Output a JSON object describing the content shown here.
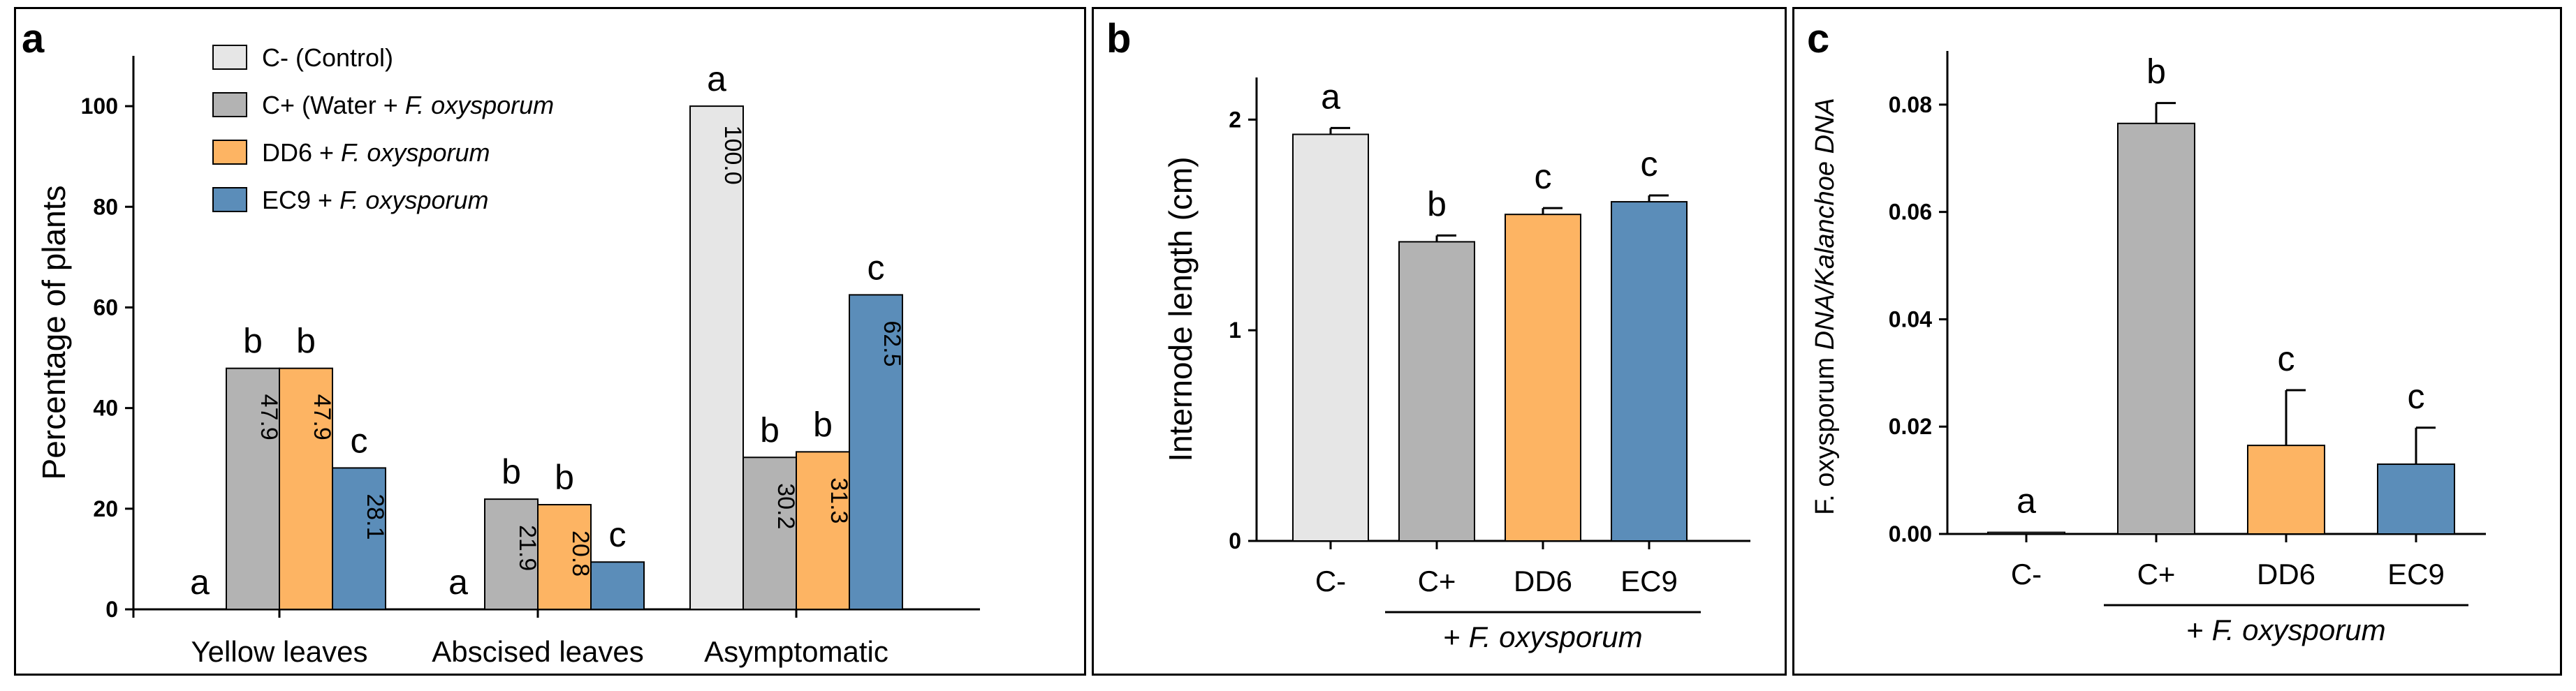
{
  "colors": {
    "control": "#e6e6e6",
    "water": "#b3b3b3",
    "dd6": "#fdb463",
    "ec9": "#5b8db9",
    "axis": "#000000"
  },
  "chart_data": [
    {
      "type": "bar",
      "panel_label": "a",
      "categories": [
        "Yellow leaves",
        "Abscised leaves",
        "Asymptomatic"
      ],
      "series": [
        {
          "name": "C- (Control)",
          "values": [
            0,
            0,
            100.0
          ],
          "value_labels": [
            "",
            "",
            "100.0"
          ],
          "letters": [
            "a",
            "a",
            "a"
          ],
          "color_key": "control"
        },
        {
          "name_parts": [
            "C+ (Water + ",
            "F. oxysporum",
            ""
          ],
          "name": "C+ (Water + F. oxysporum",
          "values": [
            47.9,
            21.9,
            30.2
          ],
          "value_labels": [
            "47.9",
            "21.9",
            "30.2"
          ],
          "letters": [
            "b",
            "b",
            "b"
          ],
          "color_key": "water"
        },
        {
          "name_parts": [
            "DD6 + ",
            "F. oxysporum",
            ""
          ],
          "name": "DD6 + F. oxysporum",
          "values": [
            47.9,
            20.8,
            31.3
          ],
          "value_labels": [
            "47.9",
            "20.8",
            "31.3"
          ],
          "letters": [
            "b",
            "b",
            "b"
          ],
          "color_key": "dd6"
        },
        {
          "name_parts": [
            "EC9 + ",
            "F. oxysporum",
            ""
          ],
          "name": "EC9 + F. oxysporum",
          "values": [
            28.1,
            9.4,
            62.5
          ],
          "value_labels": [
            "28.1",
            "",
            "62.5"
          ],
          "letters": [
            "c",
            "c",
            "c"
          ],
          "color_key": "ec9"
        }
      ],
      "ylabel": "Percentage of plants",
      "ylim": [
        0,
        110
      ],
      "yticks": [
        0,
        20,
        40,
        60,
        80,
        100
      ],
      "legend_position": "top-left",
      "grid": false
    },
    {
      "type": "bar",
      "panel_label": "b",
      "categories": [
        "C-",
        "C+",
        "DD6",
        "EC9"
      ],
      "values": [
        1.93,
        1.42,
        1.55,
        1.61
      ],
      "errors": [
        0.03,
        0.03,
        0.03,
        0.03
      ],
      "letters": [
        "a",
        "b",
        "c",
        "c"
      ],
      "color_keys": [
        "control",
        "water",
        "dd6",
        "ec9"
      ],
      "ylabel": "Internode length (cm)",
      "ylim": [
        0,
        2.2
      ],
      "yticks": [
        0,
        1,
        2
      ],
      "group_label_parts": [
        "+ ",
        "F. oxysporum"
      ],
      "grid": false
    },
    {
      "type": "bar",
      "panel_label": "c",
      "categories": [
        "C-",
        "C+",
        "DD6",
        "EC9"
      ],
      "values": [
        0.0003,
        0.0765,
        0.0165,
        0.013
      ],
      "errors": [
        0,
        0.0038,
        0.0103,
        0.0068
      ],
      "letters": [
        "a",
        "b",
        "c",
        "c"
      ],
      "color_keys": [
        "control",
        "water",
        "dd6",
        "ec9"
      ],
      "ylabel_parts": [
        "F. oxysporum",
        " DNA/Kalanchoe DNA"
      ],
      "ylim": [
        0,
        0.09
      ],
      "yticks": [
        0.0,
        0.02,
        0.04,
        0.06,
        0.08
      ],
      "ytick_labels": [
        "0.00",
        "0.02",
        "0.04",
        "0.06",
        "0.08"
      ],
      "group_label_parts": [
        "+ ",
        "F. oxysporum"
      ],
      "grid": false
    }
  ]
}
